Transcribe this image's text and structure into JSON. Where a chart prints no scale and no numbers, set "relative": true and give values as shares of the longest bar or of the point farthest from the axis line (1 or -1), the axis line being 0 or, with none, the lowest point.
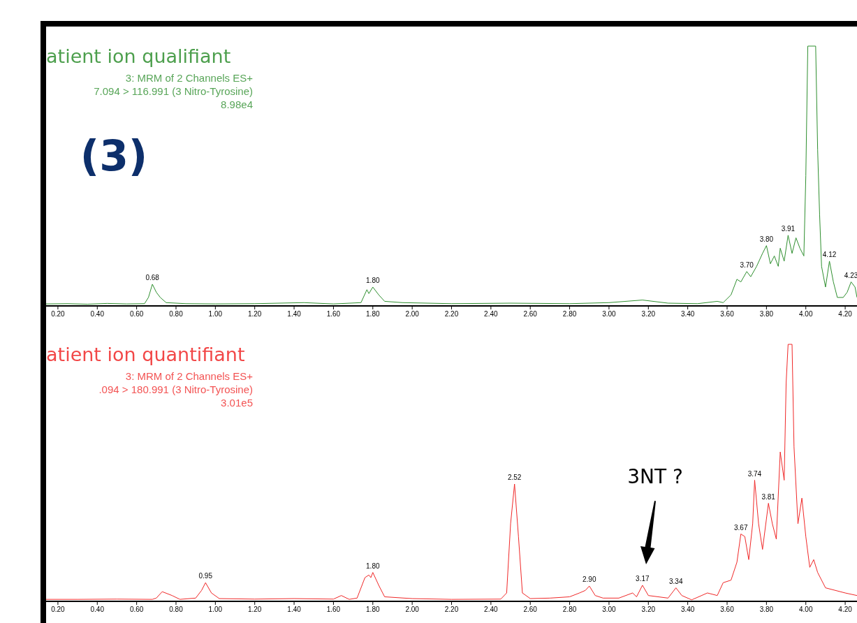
{
  "chart_data": [
    {
      "type": "line",
      "title": "atient ion qualifiant",
      "subtitle": "3: MRM of 2 Channels ES+\n7.094 > 116.991 (3 Nitro-Tyrosine)\n8.98e4",
      "relative": true,
      "xlim": [
        0.14,
        4.26
      ],
      "xticks": [
        {
          "value": 0.2,
          "label": "0.20"
        },
        {
          "value": 0.4,
          "label": "0.40"
        },
        {
          "value": 0.6,
          "label": "0.60"
        },
        {
          "value": 0.8,
          "label": "0.80"
        },
        {
          "value": 1.0,
          "label": "1.00"
        },
        {
          "value": 1.2,
          "label": "1.20"
        },
        {
          "value": 1.4,
          "label": "1.40"
        },
        {
          "value": 1.6,
          "label": "1.60"
        },
        {
          "value": 1.8,
          "label": "1.80"
        },
        {
          "value": 2.0,
          "label": "2.00"
        },
        {
          "value": 2.2,
          "label": "2.20"
        },
        {
          "value": 2.4,
          "label": "2.40"
        },
        {
          "value": 2.6,
          "label": "2.60"
        },
        {
          "value": 2.8,
          "label": "2.80"
        },
        {
          "value": 3.0,
          "label": "3.00"
        },
        {
          "value": 3.2,
          "label": "3.20"
        },
        {
          "value": 3.4,
          "label": "3.40"
        },
        {
          "value": 3.6,
          "label": "3.60"
        },
        {
          "value": 3.8,
          "label": "3.80"
        },
        {
          "value": 4.0,
          "label": "4.00"
        },
        {
          "value": 4.2,
          "label": "4.20"
        }
      ],
      "series": [
        {
          "color": "#2f8f2f",
          "x": [
            0.14,
            0.25,
            0.35,
            0.45,
            0.55,
            0.64,
            0.66,
            0.68,
            0.7,
            0.72,
            0.75,
            0.85,
            1.0,
            1.2,
            1.45,
            1.6,
            1.74,
            1.77,
            1.78,
            1.8,
            1.83,
            1.86,
            1.95,
            2.2,
            2.5,
            2.8,
            3.0,
            3.17,
            3.3,
            3.45,
            3.55,
            3.58,
            3.62,
            3.65,
            3.67,
            3.7,
            3.72,
            3.75,
            3.78,
            3.8,
            3.82,
            3.84,
            3.86,
            3.87,
            3.89,
            3.91,
            3.93,
            3.95,
            3.97,
            3.99,
            4.0,
            4.01,
            4.05,
            4.06,
            4.07,
            4.08,
            4.1,
            4.12,
            4.14,
            4.16,
            4.19,
            4.21,
            4.23,
            4.25,
            4.26
          ],
          "values": [
            0.005,
            0.006,
            0.004,
            0.007,
            0.005,
            0.006,
            0.03,
            0.081,
            0.05,
            0.03,
            0.01,
            0.006,
            0.005,
            0.006,
            0.01,
            0.005,
            0.01,
            0.06,
            0.045,
            0.07,
            0.04,
            0.015,
            0.01,
            0.006,
            0.008,
            0.006,
            0.01,
            0.02,
            0.008,
            0.006,
            0.015,
            0.01,
            0.04,
            0.1,
            0.09,
            0.13,
            0.11,
            0.15,
            0.2,
            0.23,
            0.16,
            0.19,
            0.15,
            0.22,
            0.17,
            0.27,
            0.2,
            0.26,
            0.22,
            0.19,
            0.5,
            1,
            1,
            0.6,
            0.35,
            0.15,
            0.07,
            0.17,
            0.09,
            0.03,
            0.03,
            0.05,
            0.09,
            0.07,
            0.03
          ]
        }
      ],
      "annotations": [
        "(3)",
        {
          "text": "0.68",
          "x": 0.68,
          "y": 0.081
        },
        {
          "text": "1.80",
          "x": 1.8,
          "y": 0.07
        },
        {
          "text": "3.70",
          "x": 3.7,
          "y": 0.13
        },
        {
          "text": "3.80",
          "x": 3.8,
          "y": 0.23
        },
        {
          "text": "3.91",
          "x": 3.91,
          "y": 0.27
        },
        {
          "text": "4.12",
          "x": 4.12,
          "y": 0.17
        },
        {
          "text": "4.23",
          "x": 4.23,
          "y": 0.09
        }
      ]
    },
    {
      "type": "line",
      "title": "atient ion quantifiant",
      "subtitle": "3: MRM of 2 Channels ES+\n.094 > 180.991 (3 Nitro-Tyrosine)\n3.01e5",
      "relative": true,
      "xlim": [
        0.14,
        4.26
      ],
      "xticks": [
        {
          "value": 0.2,
          "label": "0.20"
        },
        {
          "value": 0.4,
          "label": "0.40"
        },
        {
          "value": 0.6,
          "label": "0.60"
        },
        {
          "value": 0.8,
          "label": "0.80"
        },
        {
          "value": 1.0,
          "label": "1.00"
        },
        {
          "value": 1.2,
          "label": "1.20"
        },
        {
          "value": 1.4,
          "label": "1.40"
        },
        {
          "value": 1.6,
          "label": "1.60"
        },
        {
          "value": 1.8,
          "label": "1.80"
        },
        {
          "value": 2.0,
          "label": "2.00"
        },
        {
          "value": 2.2,
          "label": "2.20"
        },
        {
          "value": 2.4,
          "label": "2.40"
        },
        {
          "value": 2.6,
          "label": "2.60"
        },
        {
          "value": 2.8,
          "label": "2.80"
        },
        {
          "value": 3.0,
          "label": "3.00"
        },
        {
          "value": 3.2,
          "label": "3.20"
        },
        {
          "value": 3.4,
          "label": "3.40"
        },
        {
          "value": 3.6,
          "label": "3.60"
        },
        {
          "value": 3.8,
          "label": "3.80"
        },
        {
          "value": 4.0,
          "label": "4.00"
        },
        {
          "value": 4.2,
          "label": "4.20"
        }
      ],
      "series": [
        {
          "color": "#f02828",
          "x": [
            0.14,
            0.3,
            0.5,
            0.68,
            0.7,
            0.73,
            0.78,
            0.82,
            0.9,
            0.93,
            0.95,
            0.98,
            1.02,
            1.2,
            1.4,
            1.6,
            1.64,
            1.68,
            1.72,
            1.76,
            1.78,
            1.79,
            1.8,
            1.83,
            1.86,
            2.0,
            2.2,
            2.45,
            2.48,
            2.5,
            2.52,
            2.54,
            2.56,
            2.6,
            2.7,
            2.8,
            2.85,
            2.88,
            2.9,
            2.93,
            2.97,
            3.05,
            3.12,
            3.14,
            3.17,
            3.2,
            3.3,
            3.32,
            3.34,
            3.37,
            3.42,
            3.5,
            3.55,
            3.58,
            3.62,
            3.65,
            3.67,
            3.69,
            3.71,
            3.73,
            3.74,
            3.76,
            3.78,
            3.81,
            3.83,
            3.85,
            3.87,
            3.89,
            3.9,
            3.91,
            3.93,
            3.94,
            3.96,
            3.98,
            4.0,
            4.02,
            4.04,
            4.06,
            4.1,
            4.15,
            4.2,
            4.26
          ],
          "values": [
            0.005,
            0.005,
            0.006,
            0.005,
            0.01,
            0.035,
            0.02,
            0.005,
            0.01,
            0.04,
            0.07,
            0.03,
            0.008,
            0.006,
            0.008,
            0.006,
            0.02,
            0.005,
            0.01,
            0.09,
            0.1,
            0.09,
            0.11,
            0.06,
            0.015,
            0.008,
            0.005,
            0.006,
            0.03,
            0.3,
            0.455,
            0.25,
            0.03,
            0.008,
            0.01,
            0.015,
            0.03,
            0.04,
            0.057,
            0.02,
            0.01,
            0.01,
            0.03,
            0.015,
            0.06,
            0.02,
            0.01,
            0.03,
            0.05,
            0.02,
            0.003,
            0.03,
            0.02,
            0.07,
            0.08,
            0.15,
            0.26,
            0.25,
            0.16,
            0.3,
            0.47,
            0.3,
            0.2,
            0.38,
            0.3,
            0.24,
            0.58,
            0.47,
            0.85,
            1,
            1,
            0.6,
            0.3,
            0.4,
            0.25,
            0.13,
            0.16,
            0.11,
            0.05,
            0.04,
            0.03,
            0.02
          ]
        }
      ],
      "annotations": [
        {
          "text": "0.95",
          "x": 0.95,
          "y": 0.07
        },
        {
          "text": "1.80",
          "x": 1.8,
          "y": 0.11
        },
        {
          "text": "2.52",
          "x": 2.52,
          "y": 0.455
        },
        {
          "text": "2.90",
          "x": 2.9,
          "y": 0.057
        },
        {
          "text": "3.17",
          "x": 3.17,
          "y": 0.06
        },
        {
          "text": "3.34",
          "x": 3.34,
          "y": 0.05
        },
        {
          "text": "3.67",
          "x": 3.67,
          "y": 0.26
        },
        {
          "text": "3.74",
          "x": 3.74,
          "y": 0.47
        },
        {
          "text": "3.81",
          "x": 3.81,
          "y": 0.38
        },
        "3NT ?"
      ]
    }
  ]
}
